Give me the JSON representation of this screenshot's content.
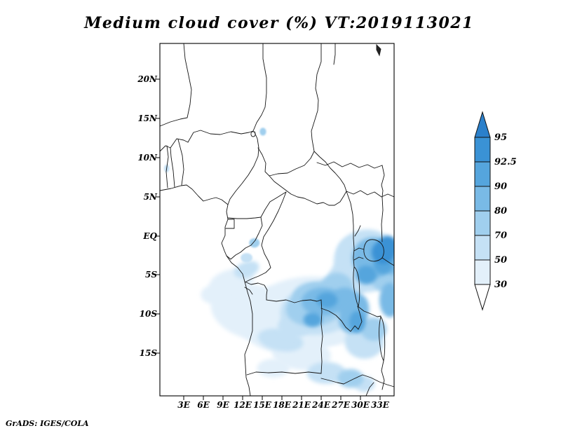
{
  "title": "Medium cloud cover (%) VT:2019113021",
  "credit": "GrADS: IGES/COLA",
  "axes": {
    "y_ticks": [
      "20N",
      "15N",
      "10N",
      "5N",
      "EQ",
      "5S",
      "10S",
      "15S"
    ],
    "x_ticks": [
      "3E",
      "6E",
      "9E",
      "12E",
      "15E",
      "18E",
      "21E",
      "24E",
      "27E",
      "30E",
      "33E"
    ]
  },
  "colorbar": {
    "labels": [
      "95",
      "92.5",
      "90",
      "80",
      "70",
      "50",
      "30"
    ],
    "orientation": "vertical",
    "position": "right"
  },
  "chart_data": {
    "type": "heatmap",
    "title": "Medium cloud cover (%) VT:2019113021",
    "variable": "medium cloud cover",
    "units": "%",
    "valid_time_label": "VT:2019113021",
    "lon_ticks_deg_east": [
      3,
      6,
      9,
      12,
      15,
      18,
      21,
      24,
      27,
      30,
      33
    ],
    "lat_ticks": [
      "20N",
      "15N",
      "10N",
      "5N",
      "EQ",
      "5S",
      "10S",
      "15S"
    ],
    "levels": [
      30,
      50,
      70,
      80,
      90,
      92.5,
      95
    ],
    "level_colors": [
      "#ffffff",
      "#e3f0fa",
      "#c5e1f5",
      "#a0cfee",
      "#79bae6",
      "#55a5dd",
      "#3a92d5",
      "#2b80cb"
    ],
    "legend_position": "right",
    "grid": false,
    "regions": [
      {
        "lon": 21.0,
        "lat": -10.1,
        "rx_deg": 9.5,
        "ry_deg": 4.8,
        "rot": -10,
        "level": 1
      },
      {
        "lon": 13.5,
        "lat": -9.7,
        "rx_deg": 6.5,
        "ry_deg": 3.5,
        "rot": 15,
        "level": 1
      },
      {
        "lon": 25.3,
        "lat": -11.0,
        "rx_deg": 5.0,
        "ry_deg": 3.0,
        "rot": 0,
        "level": 1
      },
      {
        "lon": 21.0,
        "lat": -15.1,
        "rx_deg": 4.5,
        "ry_deg": 2.0,
        "rot": 5,
        "level": 1
      },
      {
        "lon": 16.7,
        "lat": -16.9,
        "rx_deg": 2.5,
        "ry_deg": 1.2,
        "rot": 0,
        "level": 1
      },
      {
        "lon": 10.3,
        "lat": -5.9,
        "rx_deg": 3.5,
        "ry_deg": 1.6,
        "rot": -15,
        "level": 1
      },
      {
        "lon": 7.6,
        "lat": -7.5,
        "rx_deg": 2.0,
        "ry_deg": 1.2,
        "rot": 0,
        "level": 1
      },
      {
        "lon": 23.7,
        "lat": -9.4,
        "rx_deg": 6.0,
        "ry_deg": 3.2,
        "rot": -8,
        "level": 2
      },
      {
        "lon": 30.6,
        "lat": -13.5,
        "rx_deg": 3.0,
        "ry_deg": 2.2,
        "rot": 0,
        "level": 2
      },
      {
        "lon": 30.9,
        "lat": -3.2,
        "rx_deg": 5.0,
        "ry_deg": 4.0,
        "rot": -20,
        "level": 2
      },
      {
        "lon": 29.0,
        "lat": -2.1,
        "rx_deg": 2.5,
        "ry_deg": 2.0,
        "rot": 0,
        "level": 2
      },
      {
        "lon": 28.0,
        "lat": -5.7,
        "rx_deg": 3.0,
        "ry_deg": 2.5,
        "rot": 0,
        "level": 2
      },
      {
        "lon": 12.6,
        "lat": -4.3,
        "rx_deg": 2.0,
        "ry_deg": 1.0,
        "rot": -20,
        "level": 2
      },
      {
        "lon": 12.6,
        "lat": -2.8,
        "rx_deg": 0.9,
        "ry_deg": 0.6,
        "rot": 0,
        "level": 2
      },
      {
        "lon": 17.8,
        "lat": -13.3,
        "rx_deg": 3.5,
        "ry_deg": 1.4,
        "rot": 10,
        "level": 2
      },
      {
        "lon": 24.8,
        "lat": -17.5,
        "rx_deg": 3.0,
        "ry_deg": 1.4,
        "rot": 0,
        "level": 2
      },
      {
        "lon": 30.6,
        "lat": -18.9,
        "rx_deg": 1.6,
        "ry_deg": 1.0,
        "rot": 0,
        "level": 2
      },
      {
        "lon": 19.9,
        "lat": -11.5,
        "rx_deg": 2.5,
        "ry_deg": 1.5,
        "rot": 0,
        "level": 2
      },
      {
        "lon": 0.4,
        "lat": 8.6,
        "rx_deg": 0.4,
        "ry_deg": 0.5,
        "rot": 0,
        "level": 2
      },
      {
        "lon": 23.1,
        "lat": -9.1,
        "rx_deg": 4.5,
        "ry_deg": 2.4,
        "rot": -8,
        "level": 3
      },
      {
        "lon": 26.4,
        "lat": -6.7,
        "rx_deg": 2.5,
        "ry_deg": 2.0,
        "rot": 0,
        "level": 3
      },
      {
        "lon": 32.0,
        "lat": -11.9,
        "rx_deg": 2.0,
        "ry_deg": 1.5,
        "rot": 0,
        "level": 3
      },
      {
        "lon": 33.6,
        "lat": -5.5,
        "rx_deg": 2.0,
        "ry_deg": 1.6,
        "rot": 0,
        "level": 3
      },
      {
        "lon": 22.1,
        "lat": -7.5,
        "rx_deg": 2.5,
        "ry_deg": 1.5,
        "rot": -15,
        "level": 3
      },
      {
        "lon": 24.2,
        "lat": -7.3,
        "rx_deg": 3.0,
        "ry_deg": 1.5,
        "rot": 0,
        "level": 3
      },
      {
        "lon": 28.5,
        "lat": -18.2,
        "rx_deg": 2.0,
        "ry_deg": 1.2,
        "rot": 0,
        "level": 3
      },
      {
        "lon": 13.8,
        "lat": -0.9,
        "rx_deg": 0.8,
        "ry_deg": 0.6,
        "rot": 0,
        "level": 3
      },
      {
        "lon": 15.1,
        "lat": 13.3,
        "rx_deg": 0.5,
        "ry_deg": 0.5,
        "rot": 0,
        "level": 3
      },
      {
        "lon": 24.2,
        "lat": -8.4,
        "rx_deg": 3.2,
        "ry_deg": 1.8,
        "rot": 0,
        "level": 4
      },
      {
        "lon": 27.6,
        "lat": -8.2,
        "rx_deg": 2.2,
        "ry_deg": 1.6,
        "rot": 0,
        "level": 4
      },
      {
        "lon": 29.0,
        "lat": -9.9,
        "rx_deg": 2.2,
        "ry_deg": 2.6,
        "rot": 20,
        "level": 4
      },
      {
        "lon": 31.9,
        "lat": -2.8,
        "rx_deg": 3.2,
        "ry_deg": 2.6,
        "rot": -20,
        "level": 4
      },
      {
        "lon": 34.5,
        "lat": -8.2,
        "rx_deg": 1.6,
        "ry_deg": 2.2,
        "rot": 0,
        "level": 4
      },
      {
        "lon": 34.9,
        "lat": -3.0,
        "rx_deg": 1.2,
        "ry_deg": 2.0,
        "rot": 0,
        "level": 4
      },
      {
        "lon": 24.9,
        "lat": -8.2,
        "rx_deg": 1.6,
        "ry_deg": 1.0,
        "rot": 0,
        "level": 5
      },
      {
        "lon": 22.7,
        "lat": -10.7,
        "rx_deg": 1.4,
        "ry_deg": 0.9,
        "rot": 0,
        "level": 5
      },
      {
        "lon": 29.5,
        "lat": -11.0,
        "rx_deg": 1.2,
        "ry_deg": 1.4,
        "rot": 0,
        "level": 5
      },
      {
        "lon": 30.9,
        "lat": -5.0,
        "rx_deg": 1.6,
        "ry_deg": 1.2,
        "rot": 0,
        "level": 5
      },
      {
        "lon": 33.5,
        "lat": -3.7,
        "rx_deg": 1.5,
        "ry_deg": 1.2,
        "rot": 0,
        "level": 5
      },
      {
        "lon": 33.5,
        "lat": -2.1,
        "rx_deg": 1.8,
        "ry_deg": 1.5,
        "rot": 0,
        "level": 6
      },
      {
        "lon": 34.2,
        "lat": -1.2,
        "rx_deg": 1.4,
        "ry_deg": 1.2,
        "rot": 0,
        "level": 6
      }
    ]
  }
}
